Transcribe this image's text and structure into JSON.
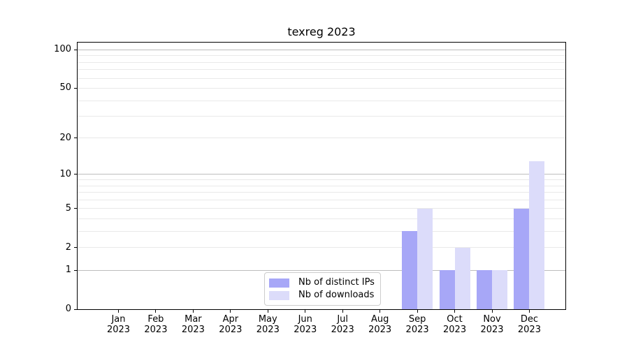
{
  "chart_data": {
    "type": "bar",
    "title": "texreg 2023",
    "categories": [
      "Jan",
      "Feb",
      "Mar",
      "Apr",
      "May",
      "Jun",
      "Jul",
      "Aug",
      "Sep",
      "Oct",
      "Nov",
      "Dec"
    ],
    "x_tick_year": "2023",
    "series": [
      {
        "name": "Nb of distinct IPs",
        "color": "#a7a7f7",
        "values": [
          0,
          0,
          0,
          0,
          0,
          0,
          0,
          0,
          3,
          1,
          1,
          5
        ]
      },
      {
        "name": "Nb of downloads",
        "color": "#dcdcfa",
        "values": [
          0,
          0,
          0,
          0,
          0,
          0,
          0,
          0,
          5,
          2,
          1,
          13
        ]
      }
    ],
    "y_axis": {
      "scale": "log1p",
      "range": [
        0,
        114
      ],
      "tick_values": [
        0,
        1,
        2,
        5,
        10,
        20,
        50,
        100
      ],
      "major_gridline_values": [
        1,
        10,
        100
      ],
      "minor_gridline_values": [
        2,
        3,
        4,
        5,
        6,
        7,
        8,
        9,
        20,
        30,
        40,
        50,
        60,
        70,
        80,
        90
      ]
    },
    "legend": {
      "location": "lower-center-inside"
    },
    "grid": true,
    "styles": {
      "major_grid_color": "#bdbdbd",
      "minor_grid_color": "#e9e9e9",
      "axis_color": "#000000",
      "background": "#ffffff",
      "legend_border_color": "#cccccc",
      "text_color": "#000000"
    }
  }
}
